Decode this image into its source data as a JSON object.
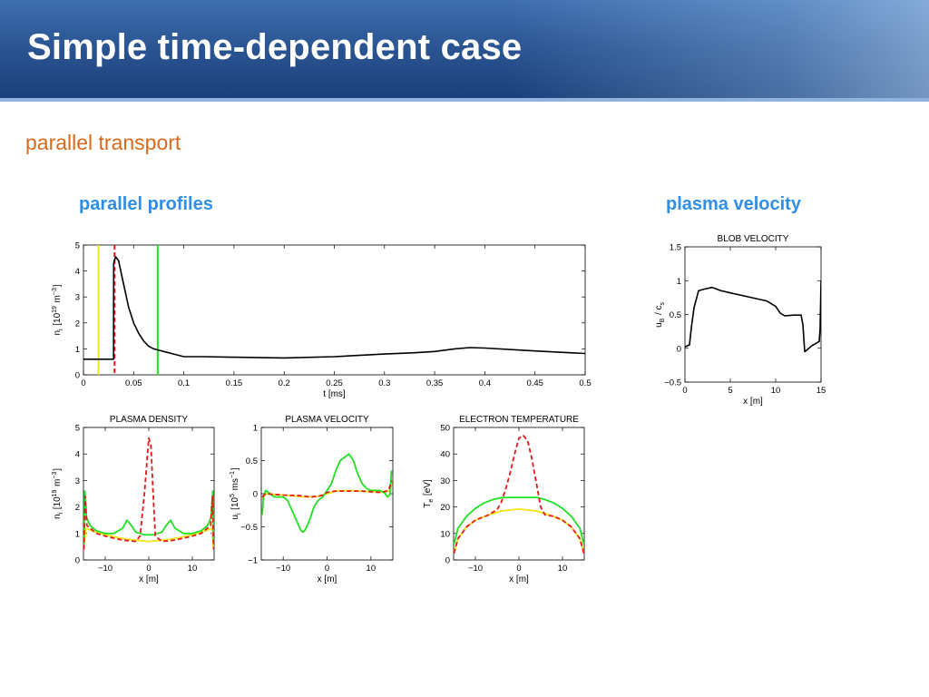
{
  "slide": {
    "title": "Simple time-dependent case",
    "subtitle": "parallel transport",
    "left_heading": "parallel profiles",
    "right_heading": "plasma velocity"
  },
  "colors": {
    "black": "#000000",
    "red_dashed": "#e21a1a",
    "green": "#22e022",
    "yellow": "#f2e41a",
    "subtitle": "#d96a1b",
    "heading": "#2f8ee6"
  },
  "chart_data": [
    {
      "id": "time_trace",
      "type": "line",
      "title": "",
      "xlabel": "t [ms]",
      "ylabel": "n_i [10^19 m^-3]",
      "xlim": [
        0,
        0.5
      ],
      "ylim": [
        0,
        5
      ],
      "xticks": [
        0,
        0.05,
        0.1,
        0.15,
        0.2,
        0.25,
        0.3,
        0.35,
        0.4,
        0.45,
        0.5
      ],
      "xtick_labels": [
        "0",
        "0.05",
        "0.1",
        "0.15",
        "0.2",
        "0.25",
        "0.3",
        "0.35",
        "0.4",
        "0.45",
        "0.5"
      ],
      "yticks": [
        0,
        1,
        2,
        3,
        4,
        5
      ],
      "ytick_labels": [
        "0",
        "1",
        "2",
        "3",
        "4",
        "5"
      ],
      "series": [
        {
          "color": "black",
          "style": "solid",
          "points": [
            [
              0,
              0.6
            ],
            [
              0.03,
              0.6
            ],
            [
              0.0301,
              4.3
            ],
            [
              0.032,
              4.55
            ],
            [
              0.035,
              4.4
            ],
            [
              0.04,
              3.5
            ],
            [
              0.045,
              2.6
            ],
            [
              0.05,
              2.0
            ],
            [
              0.055,
              1.6
            ],
            [
              0.06,
              1.3
            ],
            [
              0.065,
              1.1
            ],
            [
              0.07,
              1.0
            ],
            [
              0.08,
              0.9
            ],
            [
              0.09,
              0.8
            ],
            [
              0.1,
              0.7
            ],
            [
              0.12,
              0.7
            ],
            [
              0.15,
              0.68
            ],
            [
              0.2,
              0.65
            ],
            [
              0.25,
              0.7
            ],
            [
              0.3,
              0.8
            ],
            [
              0.33,
              0.85
            ],
            [
              0.35,
              0.9
            ],
            [
              0.37,
              1.0
            ],
            [
              0.385,
              1.05
            ],
            [
              0.4,
              1.03
            ],
            [
              0.45,
              0.92
            ],
            [
              0.5,
              0.82
            ]
          ]
        }
      ],
      "vlines": [
        {
          "x": 0.015,
          "color": "yellow",
          "style": "solid"
        },
        {
          "x": 0.031,
          "color": "red_dashed",
          "style": "dashed"
        },
        {
          "x": 0.074,
          "color": "green",
          "style": "solid"
        }
      ]
    },
    {
      "id": "blob_velocity",
      "type": "line",
      "title": "BLOB VELOCITY",
      "xlabel": "x [m]",
      "ylabel": "u_B / c_s",
      "xlim": [
        0,
        15
      ],
      "ylim": [
        -0.5,
        1.5
      ],
      "xticks": [
        0,
        5,
        10,
        15
      ],
      "xtick_labels": [
        "0",
        "5",
        "10",
        "15"
      ],
      "yticks": [
        -0.5,
        0,
        0.5,
        1,
        1.5
      ],
      "ytick_labels": [
        "−0.5",
        "0",
        "0.5",
        "1",
        "1.5"
      ],
      "series": [
        {
          "color": "black",
          "style": "solid",
          "points": [
            [
              0,
              0.02
            ],
            [
              0.5,
              0.05
            ],
            [
              0.7,
              0.3
            ],
            [
              1.0,
              0.6
            ],
            [
              1.5,
              0.85
            ],
            [
              2,
              0.87
            ],
            [
              3,
              0.9
            ],
            [
              4,
              0.85
            ],
            [
              5,
              0.82
            ],
            [
              7,
              0.76
            ],
            [
              9,
              0.7
            ],
            [
              10,
              0.62
            ],
            [
              10.5,
              0.52
            ],
            [
              11,
              0.48
            ],
            [
              12,
              0.49
            ],
            [
              12.8,
              0.49
            ],
            [
              13.0,
              0.35
            ],
            [
              13.2,
              -0.05
            ],
            [
              13.5,
              -0.02
            ],
            [
              14,
              0.04
            ],
            [
              14.8,
              0.1
            ],
            [
              14.9,
              0.3
            ],
            [
              15,
              1.0
            ]
          ]
        }
      ]
    },
    {
      "id": "plasma_density",
      "type": "line",
      "title": "PLASMA DENSITY",
      "xlabel": "x [m]",
      "ylabel": "n_i [10^19 m^-3]",
      "xlim": [
        -15,
        15
      ],
      "ylim": [
        0,
        5
      ],
      "xticks": [
        -10,
        0,
        10
      ],
      "xtick_labels": [
        "−10",
        "0",
        "10"
      ],
      "yticks": [
        0,
        1,
        2,
        3,
        4,
        5
      ],
      "ytick_labels": [
        "0",
        "1",
        "2",
        "3",
        "4",
        "5"
      ],
      "series": [
        {
          "color": "yellow",
          "style": "solid",
          "points": [
            [
              -14.8,
              0.6
            ],
            [
              -14.5,
              1.2
            ],
            [
              -13,
              1.1
            ],
            [
              -10,
              0.95
            ],
            [
              -5,
              0.78
            ],
            [
              0,
              0.7
            ],
            [
              5,
              0.78
            ],
            [
              10,
              0.95
            ],
            [
              13,
              1.1
            ],
            [
              14.5,
              1.2
            ],
            [
              14.8,
              0.5
            ]
          ]
        },
        {
          "color": "green",
          "style": "solid",
          "points": [
            [
              -14.9,
              0.6
            ],
            [
              -14.7,
              2.6
            ],
            [
              -14.3,
              1.6
            ],
            [
              -13.5,
              1.3
            ],
            [
              -12,
              1.1
            ],
            [
              -10,
              1.0
            ],
            [
              -8,
              1.0
            ],
            [
              -6,
              1.2
            ],
            [
              -5,
              1.5
            ],
            [
              -4,
              1.3
            ],
            [
              -3,
              1.05
            ],
            [
              -2,
              1.0
            ],
            [
              -1,
              0.95
            ],
            [
              1,
              0.95
            ],
            [
              2,
              1.0
            ],
            [
              3,
              1.05
            ],
            [
              4,
              1.3
            ],
            [
              5,
              1.5
            ],
            [
              6,
              1.2
            ],
            [
              8,
              1.0
            ],
            [
              10,
              1.0
            ],
            [
              12,
              1.1
            ],
            [
              13.5,
              1.3
            ],
            [
              14.3,
              1.6
            ],
            [
              14.7,
              2.6
            ],
            [
              14.9,
              0.6
            ]
          ]
        },
        {
          "color": "red_dashed",
          "style": "dashed",
          "points": [
            [
              -14.9,
              0.4
            ],
            [
              -14.6,
              2.4
            ],
            [
              -14.2,
              1.3
            ],
            [
              -12,
              1.0
            ],
            [
              -10,
              0.9
            ],
            [
              -6,
              0.75
            ],
            [
              -3,
              0.7
            ],
            [
              -2,
              0.9
            ],
            [
              -1,
              2.5
            ],
            [
              0,
              4.6
            ],
            [
              0.5,
              4.3
            ],
            [
              1,
              2.5
            ],
            [
              1.5,
              0.9
            ],
            [
              3,
              0.7
            ],
            [
              6,
              0.75
            ],
            [
              10,
              0.9
            ],
            [
              12,
              1.0
            ],
            [
              14.2,
              1.3
            ],
            [
              14.6,
              2.4
            ],
            [
              14.9,
              0.4
            ]
          ]
        }
      ]
    },
    {
      "id": "plasma_velocity",
      "type": "line",
      "title": "PLASMA VELOCITY",
      "xlabel": "x [m]",
      "ylabel": "u_i [10^5 ms^-1]",
      "xlim": [
        -15,
        15
      ],
      "ylim": [
        -1,
        1
      ],
      "xticks": [
        -10,
        0,
        10
      ],
      "xtick_labels": [
        "−10",
        "0",
        "10"
      ],
      "yticks": [
        -1,
        -0.5,
        0,
        0.5,
        1
      ],
      "ytick_labels": [
        "−1",
        "−0.5",
        "0",
        "0.5",
        "1"
      ],
      "series": [
        {
          "color": "yellow",
          "style": "solid",
          "points": [
            [
              -14.8,
              -0.08
            ],
            [
              -14,
              0.0
            ],
            [
              -10,
              -0.02
            ],
            [
              -5,
              -0.05
            ],
            [
              -2,
              -0.04
            ],
            [
              0,
              0
            ],
            [
              2,
              0.04
            ],
            [
              5,
              0.05
            ],
            [
              10,
              0.03
            ],
            [
              13,
              0.02
            ],
            [
              14.5,
              0.05
            ],
            [
              14.8,
              0.2
            ]
          ]
        },
        {
          "color": "green",
          "style": "solid",
          "points": [
            [
              -14.8,
              -0.32
            ],
            [
              -14.5,
              -0.05
            ],
            [
              -14,
              0.05
            ],
            [
              -13,
              0.0
            ],
            [
              -12,
              -0.05
            ],
            [
              -10,
              -0.05
            ],
            [
              -9,
              -0.1
            ],
            [
              -8,
              -0.25
            ],
            [
              -7,
              -0.4
            ],
            [
              -6,
              -0.55
            ],
            [
              -5.5,
              -0.58
            ],
            [
              -5,
              -0.55
            ],
            [
              -4,
              -0.4
            ],
            [
              -3,
              -0.2
            ],
            [
              -2,
              -0.1
            ],
            [
              -1,
              -0.05
            ],
            [
              0,
              0.05
            ],
            [
              1,
              0.15
            ],
            [
              2,
              0.35
            ],
            [
              3,
              0.5
            ],
            [
              4,
              0.55
            ],
            [
              5,
              0.6
            ],
            [
              6,
              0.5
            ],
            [
              7,
              0.3
            ],
            [
              8,
              0.15
            ],
            [
              9,
              0.08
            ],
            [
              10,
              0.05
            ],
            [
              12,
              0.05
            ],
            [
              13,
              0.02
            ],
            [
              13.8,
              -0.05
            ],
            [
              14.3,
              -0.02
            ],
            [
              14.7,
              0.35
            ]
          ]
        },
        {
          "color": "red_dashed",
          "style": "dashed",
          "points": [
            [
              -14.8,
              -0.05
            ],
            [
              -14,
              0.0
            ],
            [
              -10,
              -0.02
            ],
            [
              -6,
              -0.03
            ],
            [
              -4,
              -0.05
            ],
            [
              -2,
              -0.04
            ],
            [
              -1,
              -0.02
            ],
            [
              0,
              0.02
            ],
            [
              2,
              0.04
            ],
            [
              5,
              0.04
            ],
            [
              8,
              0.04
            ],
            [
              10,
              0.03
            ],
            [
              12,
              0.02
            ],
            [
              13,
              0.03
            ],
            [
              14,
              0.05
            ],
            [
              14.8,
              0.2
            ]
          ]
        }
      ]
    },
    {
      "id": "electron_temperature",
      "type": "line",
      "title": "ELECTRON TEMPERATURE",
      "xlabel": "x [m]",
      "ylabel": "T_e [eV]",
      "xlim": [
        -15,
        15
      ],
      "ylim": [
        0,
        50
      ],
      "xticks": [
        -10,
        0,
        10
      ],
      "xtick_labels": [
        "−10",
        "0",
        "10"
      ],
      "yticks": [
        0,
        10,
        20,
        30,
        40,
        50
      ],
      "ytick_labels": [
        "0",
        "10",
        "20",
        "30",
        "40",
        "50"
      ],
      "series": [
        {
          "color": "yellow",
          "style": "solid",
          "points": [
            [
              -14.9,
              3.0
            ],
            [
              -14,
              8
            ],
            [
              -12,
              12.5
            ],
            [
              -10,
              15
            ],
            [
              -7,
              17
            ],
            [
              -4,
              18.5
            ],
            [
              0,
              19.2
            ],
            [
              4,
              18.5
            ],
            [
              7,
              17
            ],
            [
              10,
              15
            ],
            [
              12,
              12.5
            ],
            [
              14,
              8
            ],
            [
              14.9,
              3.0
            ]
          ]
        },
        {
          "color": "green",
          "style": "solid",
          "points": [
            [
              -14.9,
              6
            ],
            [
              -14,
              12
            ],
            [
              -12,
              16.5
            ],
            [
              -10,
              19.5
            ],
            [
              -8,
              21.5
            ],
            [
              -6,
              22.8
            ],
            [
              -4,
              23.5
            ],
            [
              -2,
              23.6
            ],
            [
              0,
              23.6
            ],
            [
              2,
              23.6
            ],
            [
              4,
              23.6
            ],
            [
              6,
              22.8
            ],
            [
              8,
              21.5
            ],
            [
              10,
              19.5
            ],
            [
              12,
              16.5
            ],
            [
              14,
              12
            ],
            [
              14.9,
              6
            ]
          ]
        },
        {
          "color": "red_dashed",
          "style": "dashed",
          "points": [
            [
              -14.9,
              2.5
            ],
            [
              -14,
              8
            ],
            [
              -12,
              12.5
            ],
            [
              -10,
              15
            ],
            [
              -7,
              17
            ],
            [
              -5,
              19
            ],
            [
              -4,
              22
            ],
            [
              -3,
              27
            ],
            [
              -2,
              33
            ],
            [
              -1,
              40
            ],
            [
              0,
              46
            ],
            [
              1,
              47
            ],
            [
              2,
              45
            ],
            [
              3,
              38
            ],
            [
              4,
              29
            ],
            [
              5,
              20
            ],
            [
              6,
              17
            ],
            [
              8,
              16.5
            ],
            [
              10,
              15
            ],
            [
              12,
              12.5
            ],
            [
              14,
              8
            ],
            [
              14.9,
              2.5
            ]
          ]
        }
      ]
    }
  ]
}
